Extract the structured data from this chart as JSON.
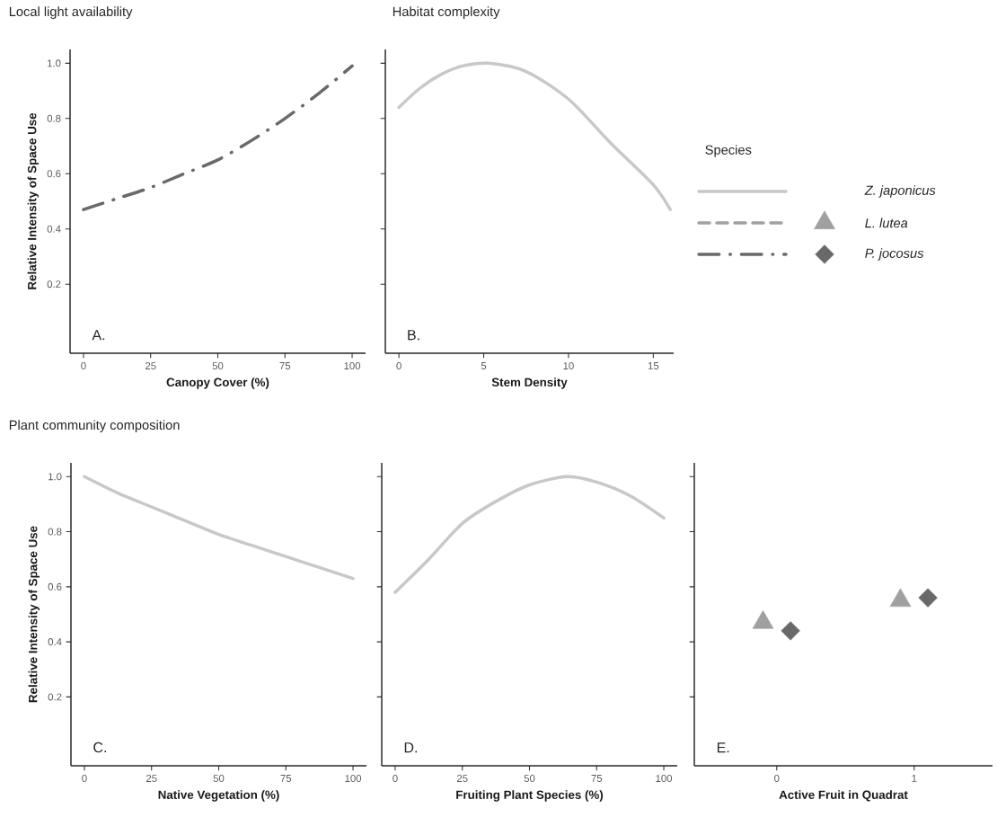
{
  "chart_data": [
    {
      "type": "line",
      "title": "Local light availability",
      "xlabel": "Canopy Cover (%)",
      "ylabel": "Relative Intensity of Space Use",
      "annotations": [
        "A."
      ],
      "xlim": [
        -5,
        105
      ],
      "ylim": [
        -0.05,
        1.05
      ],
      "xticks": [
        0,
        25,
        50,
        75,
        100
      ],
      "yticks": [
        0.2,
        0.4,
        0.6,
        0.8,
        {
          "value": 1,
          "label": "1.0"
        }
      ],
      "series": [
        {
          "color": "#696969",
          "line_style": "dashdot",
          "x": [
            0,
            12.5,
            25,
            37.5,
            50,
            62.5,
            75,
            87.5,
            100
          ],
          "values": [
            0.47,
            0.51,
            0.55,
            0.6,
            0.65,
            0.72,
            0.8,
            0.89,
            0.99
          ]
        }
      ]
    },
    {
      "type": "line",
      "title": "Habitat complexity",
      "xlabel": "Stem Density",
      "annotations": [
        "B."
      ],
      "xlim": [
        -0.8,
        16.2
      ],
      "ylim": [
        -0.05,
        1.05
      ],
      "xticks": [
        0,
        5,
        10,
        15
      ],
      "yticks": [
        0.2,
        0.4,
        0.6,
        0.8,
        1
      ],
      "tick_labels": "x",
      "series": [
        {
          "name": "Z. japonicus",
          "color": "#c8c8c8",
          "line_style": "solid",
          "x": [
            0,
            1.25,
            2.5,
            3.75,
            5.3,
            7.5,
            10,
            12.5,
            15,
            16
          ],
          "values": [
            0.84,
            0.91,
            0.96,
            0.99,
            1.0,
            0.97,
            0.87,
            0.71,
            0.56,
            0.47
          ]
        }
      ]
    },
    {
      "type": "line",
      "title": "Plant community composition",
      "xlabel": "Native Vegetation (%)",
      "ylabel": "Relative Intensity of Space Use",
      "annotations": [
        "C."
      ],
      "xlim": [
        -5,
        105
      ],
      "ylim": [
        -0.05,
        1.05
      ],
      "xticks": [
        0,
        25,
        50,
        75,
        100
      ],
      "yticks": [
        0.2,
        0.4,
        0.6,
        0.8,
        {
          "value": 1,
          "label": "1.0"
        }
      ],
      "series": [
        {
          "color": "#c8c8c8",
          "line_style": "solid",
          "x": [
            0,
            12.5,
            25,
            37.5,
            50,
            62.5,
            75,
            87.5,
            100
          ],
          "values": [
            1.0,
            0.94,
            0.89,
            0.84,
            0.79,
            0.75,
            0.71,
            0.67,
            0.63
          ]
        }
      ]
    },
    {
      "type": "line",
      "xlabel": "Fruiting Plant Species (%)",
      "annotations": [
        "D."
      ],
      "xlim": [
        -5,
        105
      ],
      "ylim": [
        -0.05,
        1.05
      ],
      "xticks": [
        0,
        25,
        50,
        75,
        100
      ],
      "yticks": [
        0.2,
        0.4,
        0.6,
        0.8,
        1
      ],
      "tick_labels": "x",
      "series": [
        {
          "color": "#c8c8c8",
          "line_style": "solid",
          "x": [
            0,
            12.5,
            25,
            37.5,
            50,
            64,
            75,
            87.5,
            100
          ],
          "values": [
            0.58,
            0.7,
            0.83,
            0.91,
            0.97,
            1.0,
            0.98,
            0.93,
            0.85
          ]
        }
      ]
    },
    {
      "type": "scatter",
      "xlabel": "Active Fruit in Quadrat",
      "annotations": [
        "E."
      ],
      "categories": [
        "0",
        "1"
      ],
      "legend": "top",
      "legend_title": "Species",
      "ylim": [
        -0.05,
        1.05
      ],
      "yticks": [
        0.2,
        0.4,
        0.6,
        0.8,
        1
      ],
      "tick_labels": "x",
      "series": [
        {
          "name": "L. lutea",
          "color": "#a0a0a0",
          "marker": "triangle",
          "line_style": "dashed",
          "values": [
            0.47,
            0.55
          ]
        },
        {
          "name": "P. jocosus",
          "color": "#696969",
          "marker": "diamond",
          "line_style": "dashdot",
          "values": [
            0.44,
            0.56
          ]
        }
      ]
    }
  ]
}
